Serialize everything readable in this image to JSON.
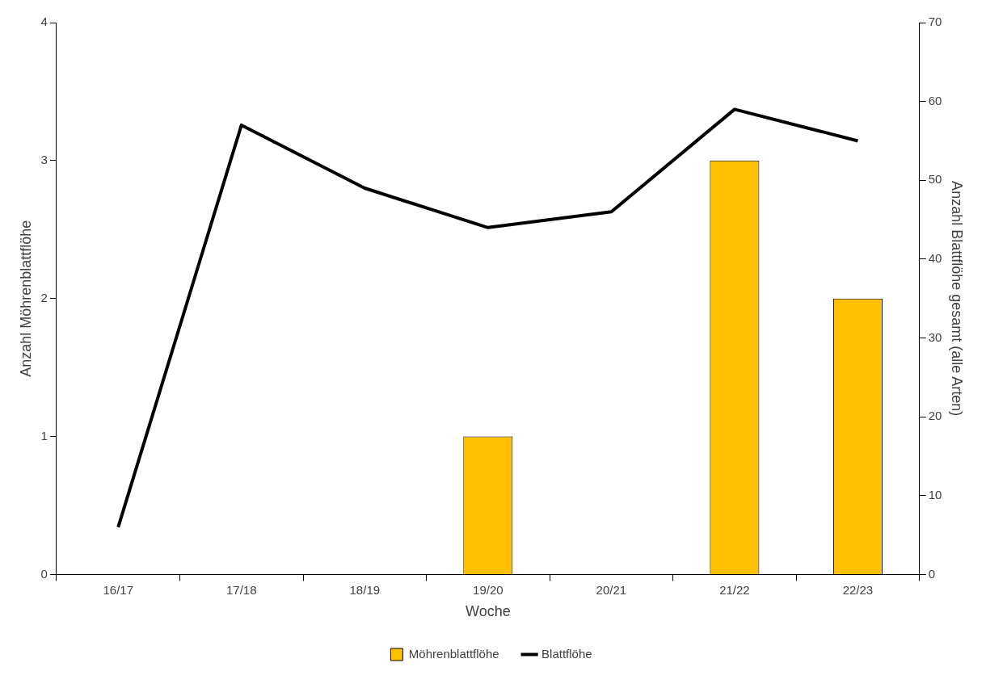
{
  "chart_data": {
    "type": "bar",
    "xlabel": "Woche",
    "ylabel": "Anzahl Möhrenblattflöhe",
    "y2label": "Anzahl Blattflöhe gesamt (alle Arten)",
    "categories": [
      "16/17",
      "17/18",
      "18/19",
      "19/20",
      "20/21",
      "21/22",
      "22/23"
    ],
    "series": [
      {
        "name": "Möhrenblattflöhe",
        "color": "#ffc000",
        "values": [
          0,
          0,
          0,
          1,
          0,
          3,
          2
        ]
      },
      {
        "name": "Blattflöhe",
        "type": "line",
        "axis": "y2",
        "color": "#000000",
        "marker": "none",
        "values": [
          6,
          57,
          49,
          44,
          46,
          59,
          55
        ]
      }
    ],
    "ylim": [
      0,
      4
    ],
    "yticks": [
      0,
      1,
      2,
      3,
      4
    ],
    "y2lim": [
      0,
      70
    ],
    "y2ticks": [
      0,
      10,
      20,
      30,
      40,
      50,
      60,
      70
    ],
    "grid": false,
    "legend": "bottom"
  }
}
